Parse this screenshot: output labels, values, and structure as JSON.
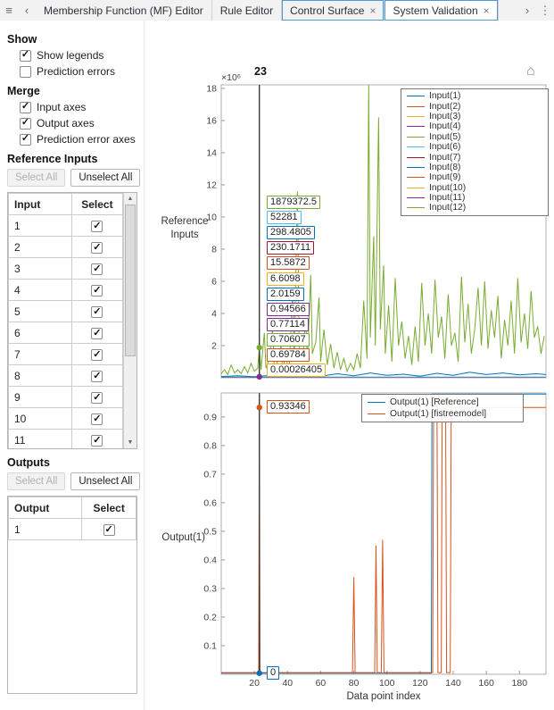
{
  "tab_bar": {
    "tabs": [
      {
        "label": "Membership Function (MF) Editor",
        "closable": false,
        "selected": false,
        "highlighted": false
      },
      {
        "label": "Rule Editor",
        "closable": false,
        "selected": false,
        "highlighted": false
      },
      {
        "label": "Control Surface",
        "closable": true,
        "selected": false,
        "highlighted": true
      },
      {
        "label": "System Validation",
        "closable": true,
        "selected": true,
        "highlighted": true
      }
    ]
  },
  "panel": {
    "show": {
      "title": "Show",
      "options": [
        {
          "label": "Show legends",
          "checked": true
        },
        {
          "label": "Prediction errors",
          "checked": false
        }
      ]
    },
    "merge": {
      "title": "Merge",
      "options": [
        {
          "label": "Input axes",
          "checked": true
        },
        {
          "label": "Output axes",
          "checked": true
        },
        {
          "label": "Prediction error axes",
          "checked": true
        }
      ]
    },
    "reference_inputs": {
      "title": "Reference Inputs",
      "select_all_label": "Select All",
      "unselect_all_label": "Unselect All",
      "columns": [
        "Input",
        "Select"
      ],
      "rows": [
        {
          "label": "1",
          "checked": true
        },
        {
          "label": "2",
          "checked": true
        },
        {
          "label": "3",
          "checked": true
        },
        {
          "label": "4",
          "checked": true
        },
        {
          "label": "5",
          "checked": true
        },
        {
          "label": "6",
          "checked": true
        },
        {
          "label": "7",
          "checked": true
        },
        {
          "label": "8",
          "checked": true
        },
        {
          "label": "9",
          "checked": true
        },
        {
          "label": "10",
          "checked": true
        },
        {
          "label": "11",
          "checked": true
        }
      ]
    },
    "outputs": {
      "title": "Outputs",
      "select_all_label": "Select All",
      "unselect_all_label": "Unselect All",
      "columns": [
        "Output",
        "Select"
      ],
      "rows": [
        {
          "label": "1",
          "checked": true
        }
      ]
    }
  },
  "chart_data": [
    {
      "type": "line",
      "ylabel": "Reference Inputs",
      "y_exponent_label": "×10⁶",
      "y_unit": "values plotted in units of 1e6",
      "xlim": [
        0,
        196
      ],
      "ylim": [
        0,
        18.22
      ],
      "ytick_values": [
        2,
        4,
        6,
        8,
        10,
        12,
        14,
        16,
        18
      ],
      "ytick_labels": [
        "2",
        "4",
        "6",
        "8",
        "10",
        "12",
        "14",
        "16",
        "18"
      ],
      "xtick_values": [],
      "xtick_labels": [],
      "grid": false,
      "cursor": {
        "x": 23,
        "label": "23"
      },
      "cursor_markers": [
        {
          "color": "#77AC30",
          "y": 1.879
        },
        {
          "color": "#7E2F8E",
          "y": 0.06
        }
      ],
      "datatips": [
        {
          "value": "1879372.5",
          "color": "#77AC30"
        },
        {
          "value": "52281",
          "color": "#4DBEEE"
        },
        {
          "value": "298.4805",
          "color": "#0072BD"
        },
        {
          "value": "230.1711",
          "color": "#A2142F"
        },
        {
          "value": "15.5872",
          "color": "#D95319"
        },
        {
          "value": "6.6098",
          "color": "#EDB120"
        },
        {
          "value": "2.0159",
          "color": "#0072BD"
        },
        {
          "value": "0.94566",
          "color": "#7E2F8E"
        },
        {
          "value": "0.77114",
          "color": "#7E2F8E"
        },
        {
          "value": "0.70607",
          "color": "#77AC30"
        },
        {
          "value": "0.69784",
          "color": "#D95319"
        },
        {
          "value": "0.00026405",
          "color": "#EDB120"
        }
      ],
      "legend": {
        "position": "top-right",
        "entries": [
          {
            "label": "Input(1)",
            "color": "#0072BD"
          },
          {
            "label": "Input(2)",
            "color": "#D95319"
          },
          {
            "label": "Input(3)",
            "color": "#EDB120"
          },
          {
            "label": "Input(4)",
            "color": "#7E2F8E"
          },
          {
            "label": "Input(5)",
            "color": "#77AC30"
          },
          {
            "label": "Input(6)",
            "color": "#4DBEEE"
          },
          {
            "label": "Input(7)",
            "color": "#A2142F"
          },
          {
            "label": "Input(8)",
            "color": "#0072BD"
          },
          {
            "label": "Input(9)",
            "color": "#D95319"
          },
          {
            "label": "Input(10)",
            "color": "#EDB120"
          },
          {
            "label": "Input(11)",
            "color": "#7E2F8E"
          },
          {
            "label": "Input(12)",
            "color": "#77AC30"
          }
        ]
      },
      "series": [
        {
          "name": "Input(3)",
          "color": "#EDB120",
          "points": [
            [
              0,
              0.005
            ],
            [
              196,
              0.005
            ]
          ]
        },
        {
          "name": "Input(4)",
          "color": "#7E2F8E",
          "points": [
            [
              0,
              0.008
            ],
            [
              196,
              0.008
            ]
          ]
        },
        {
          "name": "Input(2)",
          "color": "#D95319",
          "points": [
            [
              0,
              0.012
            ],
            [
              196,
              0.012
            ]
          ]
        },
        {
          "name": "Input(7)",
          "color": "#A2142F",
          "points": [
            [
              0,
              0.02
            ],
            [
              196,
              0.02
            ]
          ]
        },
        {
          "name": "Input(6)",
          "color": "#4DBEEE",
          "points": [
            [
              0,
              0.05
            ],
            [
              196,
              0.05
            ]
          ]
        },
        {
          "name": "Input(1)",
          "color": "#0072BD",
          "points": [
            [
              0,
              0.08
            ],
            [
              10,
              0.12
            ],
            [
              20,
              0.06
            ],
            [
              30,
              0.15
            ],
            [
              40,
              0.08
            ],
            [
              50,
              0.2
            ],
            [
              60,
              0.1
            ],
            [
              70,
              0.25
            ],
            [
              80,
              0.12
            ],
            [
              90,
              0.3
            ],
            [
              100,
              0.15
            ],
            [
              110,
              0.22
            ],
            [
              120,
              0.1
            ],
            [
              130,
              0.28
            ],
            [
              140,
              0.15
            ],
            [
              150,
              0.35
            ],
            [
              160,
              0.2
            ],
            [
              170,
              0.3
            ],
            [
              180,
              0.18
            ],
            [
              190,
              0.25
            ],
            [
              196,
              0.2
            ]
          ]
        },
        {
          "name": "Input(5)",
          "color": "#77AC30",
          "points": [
            [
              0,
              0.25
            ],
            [
              2,
              0.5
            ],
            [
              4,
              0.2
            ],
            [
              6,
              0.8
            ],
            [
              8,
              0.3
            ],
            [
              10,
              0.5
            ],
            [
              12,
              0.25
            ],
            [
              14,
              0.7
            ],
            [
              16,
              0.3
            ],
            [
              18,
              0.9
            ],
            [
              20,
              0.4
            ],
            [
              22,
              0.6
            ],
            [
              23,
              1.879
            ],
            [
              24,
              0.5
            ],
            [
              26,
              2.8
            ],
            [
              27,
              0.6
            ],
            [
              29,
              1.2
            ],
            [
              31,
              3.1
            ],
            [
              32,
              0.5
            ],
            [
              34,
              1.0
            ],
            [
              36,
              2.0
            ],
            [
              37,
              0.5
            ],
            [
              39,
              1.3
            ],
            [
              41,
              0.4
            ],
            [
              43,
              5.4
            ],
            [
              44,
              1.2
            ],
            [
              46,
              11.6
            ],
            [
              47,
              2.0
            ],
            [
              49,
              1.0
            ],
            [
              51,
              3.6
            ],
            [
              52,
              1.0
            ],
            [
              54,
              6.4
            ],
            [
              55,
              1.5
            ],
            [
              57,
              2.2
            ],
            [
              59,
              5.0
            ],
            [
              60,
              1.0
            ],
            [
              62,
              3.0
            ],
            [
              64,
              0.8
            ],
            [
              66,
              2.1
            ],
            [
              68,
              0.6
            ],
            [
              70,
              1.6
            ],
            [
              72,
              0.5
            ],
            [
              74,
              1.2
            ],
            [
              76,
              0.4
            ],
            [
              78,
              0.9
            ],
            [
              80,
              0.5
            ],
            [
              82,
              1.5
            ],
            [
              84,
              0.6
            ],
            [
              86,
              4.8
            ],
            [
              88,
              1.2
            ],
            [
              89,
              18.2
            ],
            [
              90,
              2.5
            ],
            [
              92,
              8.8
            ],
            [
              93,
              2.0
            ],
            [
              95,
              16.2
            ],
            [
              96,
              3.0
            ],
            [
              98,
              7.0
            ],
            [
              99,
              1.5
            ],
            [
              101,
              4.5
            ],
            [
              103,
              1.0
            ],
            [
              105,
              6.2
            ],
            [
              107,
              2.0
            ],
            [
              109,
              3.5
            ],
            [
              111,
              1.2
            ],
            [
              113,
              2.6
            ],
            [
              115,
              0.8
            ],
            [
              117,
              3.2
            ],
            [
              119,
              1.0
            ],
            [
              121,
              5.9
            ],
            [
              123,
              2.0
            ],
            [
              125,
              4.0
            ],
            [
              127,
              1.5
            ],
            [
              129,
              6.1
            ],
            [
              131,
              2.5
            ],
            [
              133,
              3.8
            ],
            [
              135,
              1.2
            ],
            [
              137,
              5.2
            ],
            [
              139,
              2.0
            ],
            [
              141,
              2.8
            ],
            [
              143,
              1.0
            ],
            [
              145,
              6.3
            ],
            [
              147,
              2.2
            ],
            [
              149,
              4.6
            ],
            [
              151,
              1.5
            ],
            [
              153,
              3.0
            ],
            [
              155,
              5.6
            ],
            [
              157,
              2.0
            ],
            [
              159,
              6.0
            ],
            [
              161,
              1.8
            ],
            [
              163,
              4.2
            ],
            [
              165,
              2.5
            ],
            [
              167,
              5.1
            ],
            [
              169,
              1.2
            ],
            [
              171,
              3.6
            ],
            [
              173,
              2.0
            ],
            [
              175,
              4.8
            ],
            [
              177,
              1.5
            ],
            [
              179,
              6.2
            ],
            [
              181,
              2.2
            ],
            [
              183,
              4.0
            ],
            [
              185,
              1.8
            ],
            [
              187,
              5.4
            ],
            [
              189,
              2.5
            ],
            [
              191,
              3.2
            ],
            [
              193,
              1.5
            ],
            [
              195,
              2.6
            ]
          ]
        }
      ]
    },
    {
      "type": "line",
      "ylabel": "Output(1)",
      "xlabel": "Data point index",
      "xlim": [
        0,
        196
      ],
      "ylim": [
        0,
        0.984
      ],
      "ytick_values": [
        0.1,
        0.2,
        0.3,
        0.4,
        0.5,
        0.6,
        0.7,
        0.8,
        0.9
      ],
      "ytick_labels": [
        "0.1",
        "0.2",
        "0.3",
        "0.4",
        "0.5",
        "0.6",
        "0.7",
        "0.8",
        "0.9"
      ],
      "xtick_values": [
        20,
        40,
        60,
        80,
        100,
        120,
        140,
        160,
        180
      ],
      "xtick_labels": [
        "20",
        "40",
        "60",
        "80",
        "100",
        "120",
        "140",
        "160",
        "180"
      ],
      "grid": false,
      "cursor": {
        "x": 23,
        "label": ""
      },
      "cursor_markers": [
        {
          "color": "#D95319",
          "y": 0.93346
        },
        {
          "color": "#0072BD",
          "y": 0.004
        }
      ],
      "datatips": [
        {
          "value": "0.93346",
          "color": "#D95319",
          "y": 0.93346
        },
        {
          "value": "0",
          "color": "#0072BD",
          "y": 0.004
        }
      ],
      "legend": {
        "position": "top-center-right",
        "entries": [
          {
            "label": "Output(1) [Reference]",
            "color": "#0072BD"
          },
          {
            "label": "Output(1) [fistreemodel]",
            "color": "#D95319"
          }
        ]
      },
      "series": [
        {
          "name": "Output(1) [Reference]",
          "color": "#0072BD",
          "points": [
            [
              0,
              0.004
            ],
            [
              126.8,
              0.004
            ],
            [
              127.2,
              0.98
            ],
            [
              196,
              0.98
            ]
          ]
        },
        {
          "name": "Output(1) [fistreemodel]",
          "color": "#D95319",
          "points": [
            [
              0,
              0.006
            ],
            [
              22.6,
              0.006
            ],
            [
              23,
              0.9335
            ],
            [
              23.4,
              0.006
            ],
            [
              79.2,
              0.006
            ],
            [
              80,
              0.34
            ],
            [
              80.8,
              0.006
            ],
            [
              92.6,
              0.006
            ],
            [
              93.4,
              0.45
            ],
            [
              94.2,
              0.006
            ],
            [
              96.6,
              0.006
            ],
            [
              97.4,
              0.47
            ],
            [
              98.2,
              0.006
            ],
            [
              127.6,
              0.006
            ],
            [
              128.2,
              0.97
            ],
            [
              130.2,
              0.97
            ],
            [
              130.8,
              0.006
            ],
            [
              132.8,
              0.006
            ],
            [
              133.4,
              0.97
            ],
            [
              135.4,
              0.97
            ],
            [
              136,
              0.006
            ],
            [
              138.2,
              0.006
            ],
            [
              138.8,
              0.9335
            ],
            [
              196,
              0.9335
            ]
          ]
        }
      ]
    }
  ]
}
